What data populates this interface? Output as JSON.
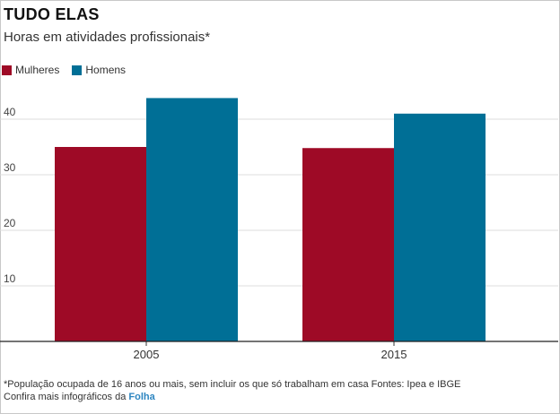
{
  "chart_data": {
    "type": "bar",
    "title": "TUDO ELAS",
    "subtitle": "Horas em atividades profissionais*",
    "categories": [
      "2005",
      "2015"
    ],
    "series": [
      {
        "name": "Mulheres",
        "color": "#9e0a26",
        "values": [
          35.0,
          34.8
        ]
      },
      {
        "name": "Homens",
        "color": "#006f96",
        "values": [
          43.8,
          41.0
        ]
      }
    ],
    "xlabel": "",
    "ylabel": "",
    "ylim": [
      0,
      50
    ],
    "yticks": [
      10,
      20,
      30,
      40
    ],
    "grid": true,
    "legend": "top-left"
  },
  "footer": {
    "note": "*População ocupada de 16 anos ou mais, sem incluir os que só trabalham em casa Fontes: Ipea e IBGE",
    "credit_prefix": "Confira mais infográficos da ",
    "credit_brand": "Folha"
  }
}
